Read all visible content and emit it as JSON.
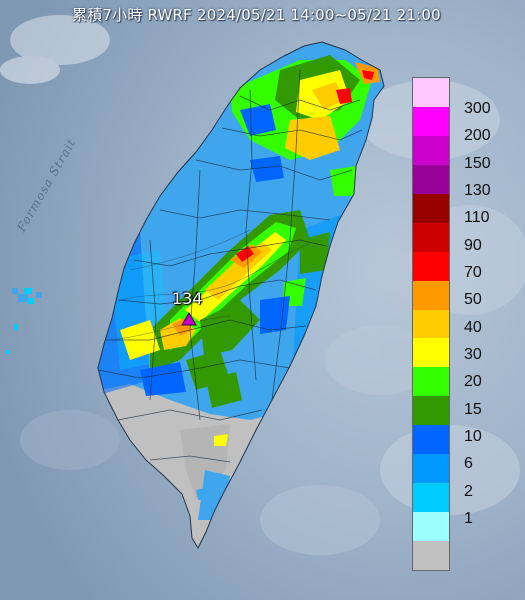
{
  "title": "累積7小時 RWRF 2024/05/21 14:00~05/21 21:00",
  "sea_label": "Formosa Strait",
  "peak": {
    "value_label": "134",
    "marker": "triangle-icon",
    "color": "#c800c8"
  },
  "legend": {
    "labels": [
      "300",
      "200",
      "150",
      "130",
      "110",
      "90",
      "70",
      "50",
      "40",
      "30",
      "20",
      "15",
      "10",
      "6",
      "2",
      "1"
    ],
    "colors": [
      "#fdc8fd",
      "#ff00ff",
      "#cc00cc",
      "#99009a",
      "#990000",
      "#cc0000",
      "#ff0000",
      "#ff9900",
      "#ffcc00",
      "#ffff00",
      "#33ff00",
      "#339900",
      "#0066ff",
      "#0099ff",
      "#00ccff",
      "#99ffff",
      "#c0c0c0"
    ]
  },
  "colors": {
    "sea": "#8fa6bf",
    "land_light_blue": "#3fa6ee",
    "no_rain": "#c0c0c0"
  }
}
